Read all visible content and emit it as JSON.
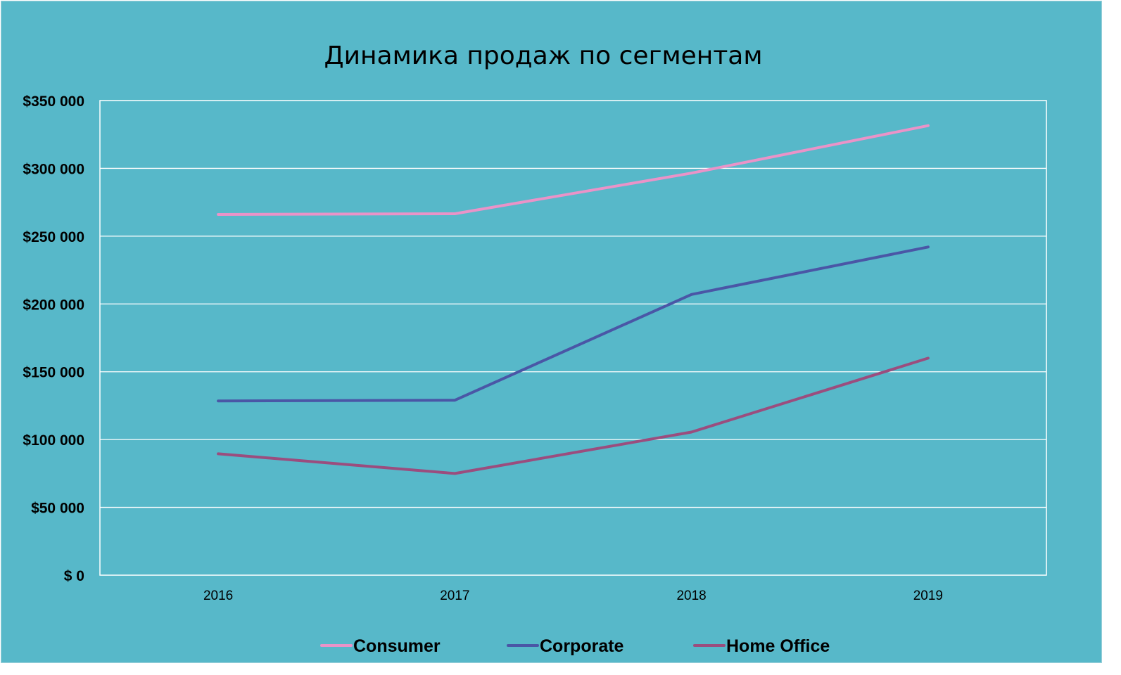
{
  "chart_data": {
    "type": "line",
    "title": "Динамика продаж по сегментам",
    "xlabel": "",
    "ylabel": "",
    "categories": [
      "2016",
      "2017",
      "2018",
      "2019"
    ],
    "ylim": [
      0,
      350000
    ],
    "y_ticks": [
      {
        "value": 0,
        "label": "$ 0"
      },
      {
        "value": 50000,
        "label": "$50 000"
      },
      {
        "value": 100000,
        "label": "$100 000"
      },
      {
        "value": 150000,
        "label": "$150 000"
      },
      {
        "value": 200000,
        "label": "$200 000"
      },
      {
        "value": 250000,
        "label": "$250 000"
      },
      {
        "value": 300000,
        "label": "$300 000"
      },
      {
        "value": 350000,
        "label": "$350 000"
      }
    ],
    "grid": true,
    "legend_position": "bottom",
    "series": [
      {
        "name": "Consumer",
        "color": "#ea93c8",
        "values": [
          266000,
          266500,
          296500,
          331500
        ]
      },
      {
        "name": "Corporate",
        "color": "#4a56a6",
        "values": [
          128500,
          129000,
          207000,
          242000
        ]
      },
      {
        "name": "Home Office",
        "color": "#9b4d7e",
        "values": [
          89500,
          75000,
          105500,
          160000
        ]
      }
    ]
  },
  "colors": {
    "background": "#57b8c9",
    "gridline": "#ffffff",
    "axis": "#ffffff"
  }
}
